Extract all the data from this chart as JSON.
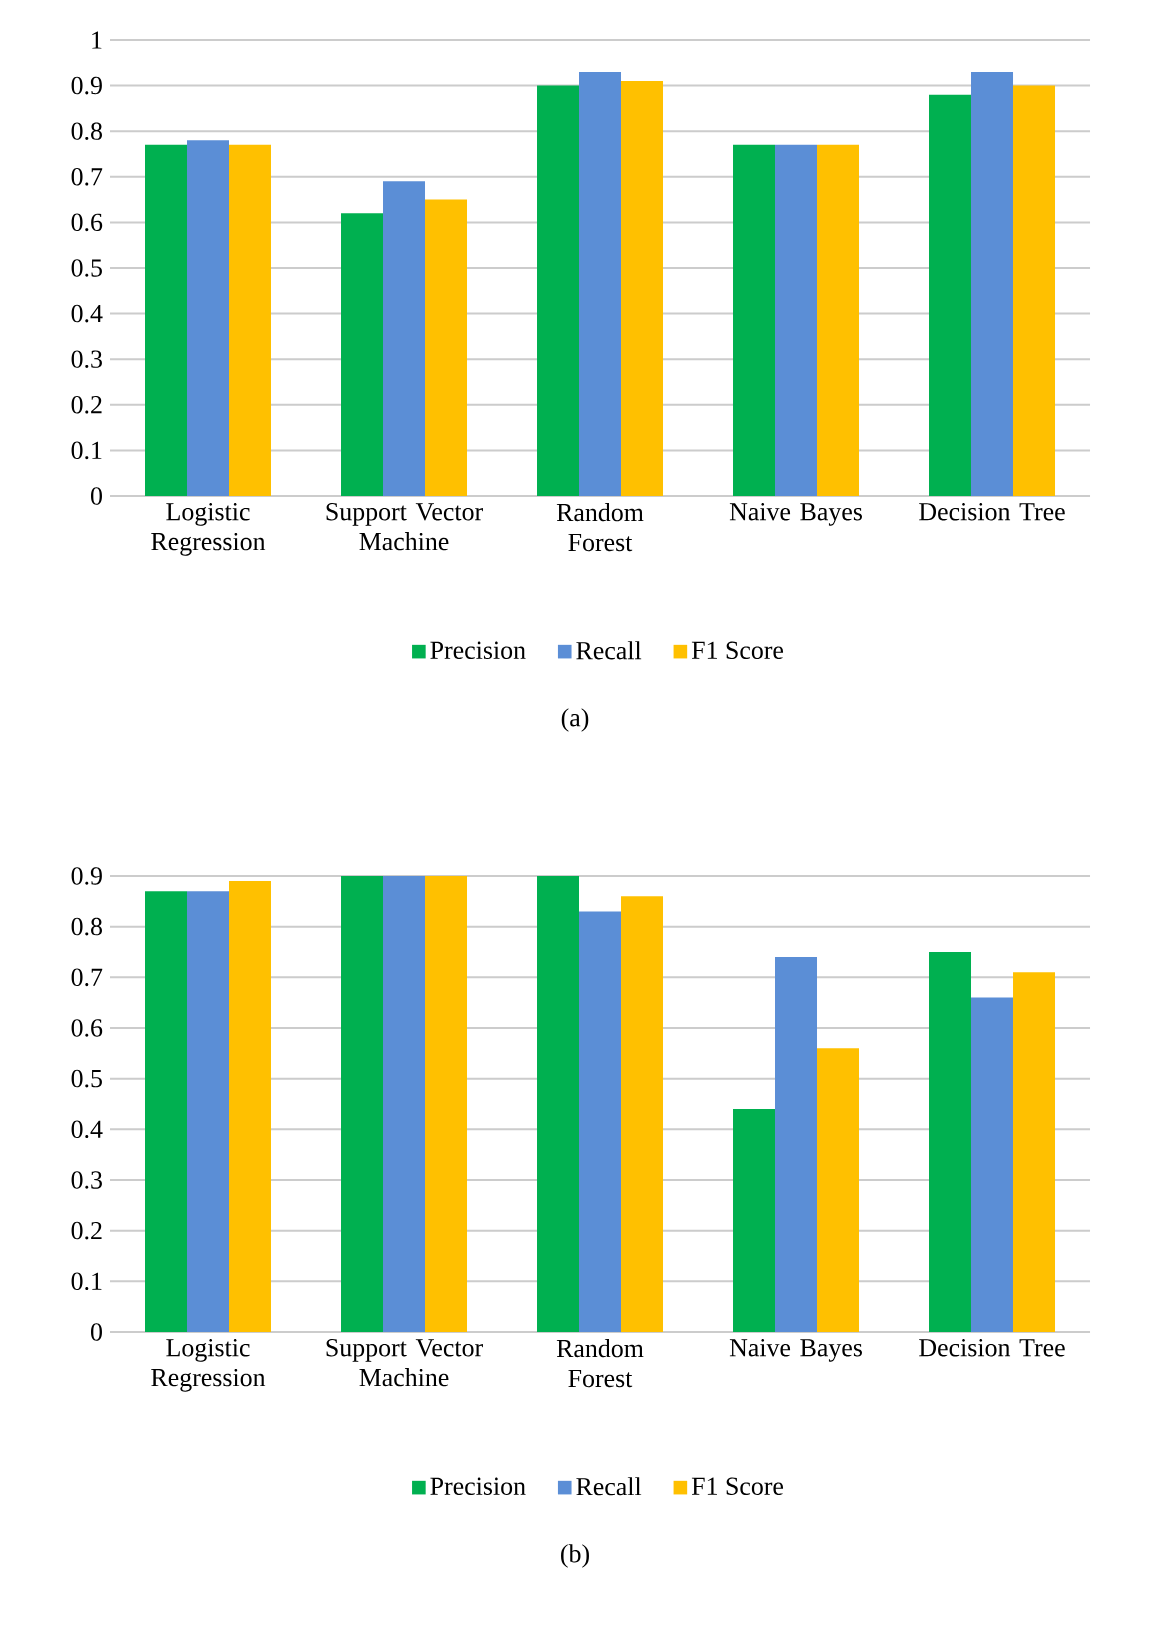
{
  "chart_data": [
    {
      "type": "bar",
      "categories": [
        "Logistic Regression",
        "Support Vector Machine",
        "Random Forest",
        "Naive Bayes",
        "Decision Tree"
      ],
      "series": [
        {
          "name": "Precision",
          "color": "#00b050",
          "values": [
            0.77,
            0.62,
            0.9,
            0.77,
            0.88
          ]
        },
        {
          "name": "Recall",
          "color": "#5b8ed6",
          "values": [
            0.78,
            0.69,
            0.93,
            0.77,
            0.93
          ]
        },
        {
          "name": "F1 Score",
          "color": "#ffc000",
          "values": [
            0.77,
            0.65,
            0.91,
            0.77,
            0.9
          ]
        }
      ],
      "ylim": [
        0,
        1
      ],
      "yticks": [
        0,
        0.1,
        0.2,
        0.3,
        0.4,
        0.5,
        0.6,
        0.7,
        0.8,
        0.9,
        1
      ],
      "grid": "y",
      "legend": "bottom",
      "annotations": [
        "(a)"
      ]
    },
    {
      "type": "bar",
      "categories": [
        "Logistic Regression",
        "Support Vector Machine",
        "Random Forest",
        "Naive Bayes",
        "Decision Tree"
      ],
      "series": [
        {
          "name": "Precision",
          "color": "#00b050",
          "values": [
            0.87,
            0.9,
            0.9,
            0.44,
            0.75
          ]
        },
        {
          "name": "Recall",
          "color": "#5b8ed6",
          "values": [
            0.87,
            0.9,
            0.83,
            0.74,
            0.66
          ]
        },
        {
          "name": "F1 Score",
          "color": "#ffc000",
          "values": [
            0.89,
            0.9,
            0.86,
            0.56,
            0.71
          ]
        }
      ],
      "ylim": [
        0,
        0.9
      ],
      "yticks": [
        0,
        0.1,
        0.2,
        0.3,
        0.4,
        0.5,
        0.6,
        0.7,
        0.8,
        0.9
      ],
      "grid": "y",
      "legend": "bottom",
      "annotations": [
        "(b)"
      ]
    }
  ]
}
